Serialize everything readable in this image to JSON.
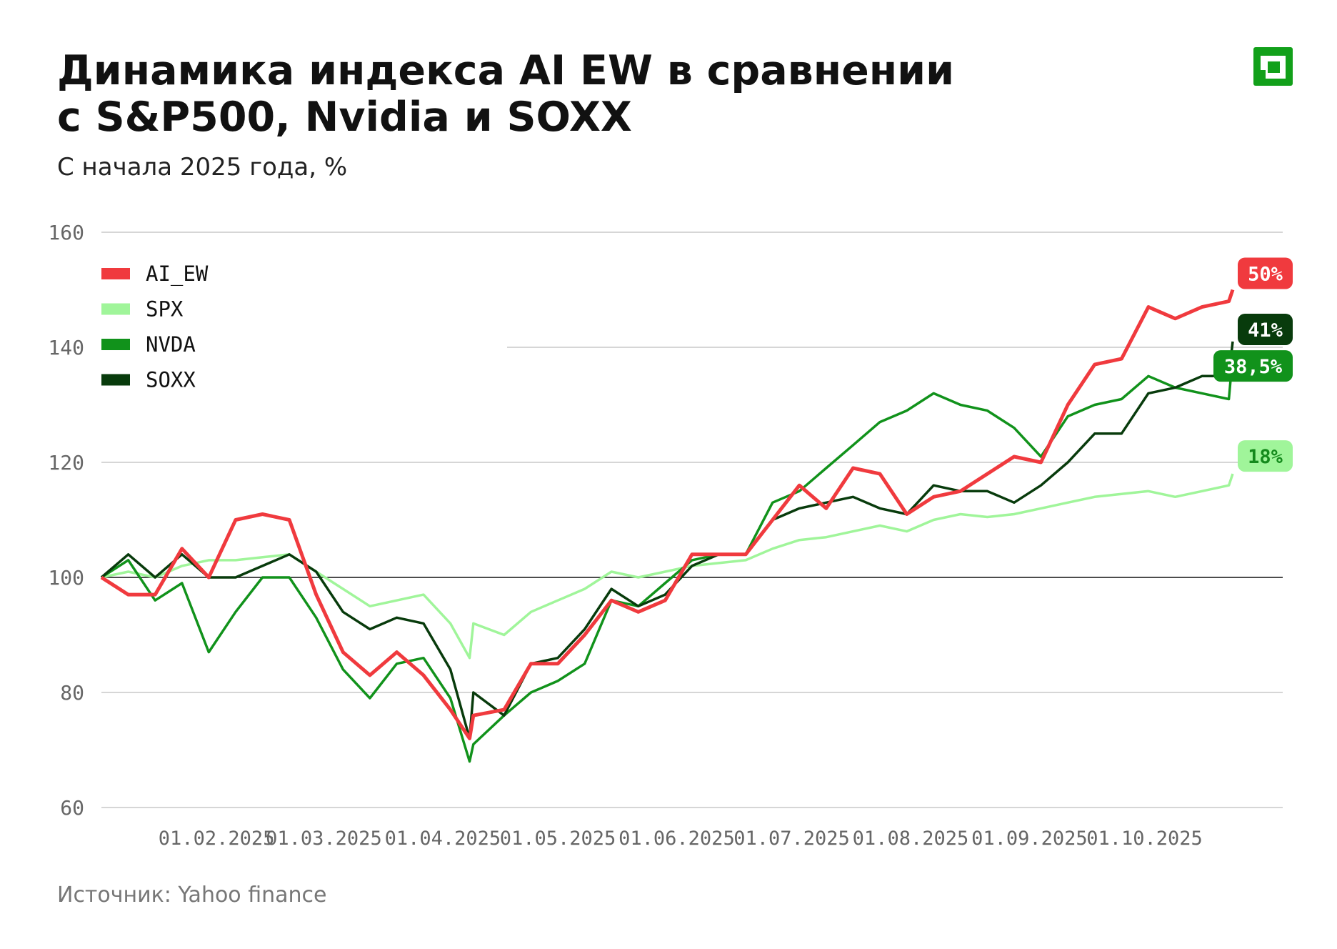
{
  "chart_data": {
    "type": "line",
    "title": [
      "Динамика индекса AI EW в сравнении",
      "с S&P500, Nvidia и SOXX"
    ],
    "subtitle": "С начала 2025 года, %",
    "source": "Источник: Yahoo finance",
    "x": [
      "02.01.2025",
      "09.01.2025",
      "16.01.2025",
      "23.01.2025",
      "30.01.2025",
      "06.02.2025",
      "13.02.2025",
      "20.02.2025",
      "27.02.2025",
      "06.03.2025",
      "13.03.2025",
      "20.03.2025",
      "27.03.2025",
      "03.04.2025",
      "08.04.2025",
      "09.04.2025",
      "17.04.2025",
      "24.04.2025",
      "01.05.2025",
      "08.05.2025",
      "15.05.2025",
      "22.05.2025",
      "29.05.2025",
      "05.06.2025",
      "12.06.2025",
      "19.06.2025",
      "26.06.2025",
      "03.07.2025",
      "10.07.2025",
      "17.07.2025",
      "24.07.2025",
      "31.07.2025",
      "07.08.2025",
      "14.08.2025",
      "21.08.2025",
      "28.08.2025",
      "04.09.2025",
      "11.09.2025",
      "18.09.2025",
      "25.09.2025",
      "02.10.2025",
      "09.10.2025",
      "16.10.2025",
      "23.10.2025",
      "24.10.2025"
    ],
    "xlim": [
      "02.01.2025",
      "24.10.2025"
    ],
    "xticks": [
      "01.02.2025",
      "01.03.2025",
      "01.04.2025",
      "01.05.2025",
      "01.06.2025",
      "01.07.2025",
      "01.08.2025",
      "01.09.2025",
      "01.10.2025"
    ],
    "ylim": [
      60,
      160
    ],
    "yticks": [
      60,
      80,
      100,
      120,
      140,
      160
    ],
    "baseline": 100,
    "grid": true,
    "legend": "top-left",
    "series": [
      {
        "name": "AI_EW",
        "color": "#f03a3e",
        "end_label": "50%",
        "values": [
          100,
          97,
          97,
          105,
          100,
          110,
          111,
          110,
          97,
          87,
          83,
          87,
          83,
          77,
          72,
          76,
          77,
          85,
          85,
          90,
          96,
          94,
          96,
          104,
          104,
          104,
          110,
          116,
          112,
          119,
          118,
          111,
          114,
          115,
          118,
          121,
          120,
          130,
          137,
          138,
          147,
          145,
          147,
          148,
          150
        ]
      },
      {
        "name": "SPX",
        "color": "#a0f59a",
        "end_label": "18%",
        "values": [
          100,
          101,
          100,
          102,
          103,
          103,
          103.5,
          104,
          101,
          98,
          95,
          96,
          97,
          92,
          86,
          92,
          90,
          94,
          96,
          98,
          101,
          100,
          101,
          102,
          102.5,
          103,
          105,
          106.5,
          107,
          108,
          109,
          108,
          110,
          111,
          110.5,
          111,
          112,
          113,
          114,
          114.5,
          115,
          114,
          115,
          116,
          118
        ]
      },
      {
        "name": "NVDA",
        "color": "#11921b",
        "end_label": "38,5%",
        "values": [
          100,
          103,
          96,
          99,
          87,
          94,
          100,
          100,
          93,
          84,
          79,
          85,
          86,
          79,
          68,
          71,
          76,
          80,
          82,
          85,
          96,
          95,
          99,
          103,
          104,
          104,
          113,
          115,
          119,
          123,
          127,
          129,
          132,
          130,
          129,
          126,
          121,
          128,
          130,
          131,
          135,
          133,
          132,
          131,
          138.5
        ]
      },
      {
        "name": "SOXX",
        "color": "#083b0c",
        "end_label": "41%",
        "values": [
          100,
          104,
          100,
          104,
          100,
          100,
          102,
          104,
          101,
          94,
          91,
          93,
          92,
          84,
          72,
          80,
          76,
          85,
          86,
          91,
          98,
          95,
          97,
          102,
          104,
          104,
          110,
          112,
          113,
          114,
          112,
          111,
          116,
          115,
          115,
          113,
          116,
          120,
          125,
          125,
          132,
          133,
          135,
          135,
          141
        ]
      }
    ]
  }
}
